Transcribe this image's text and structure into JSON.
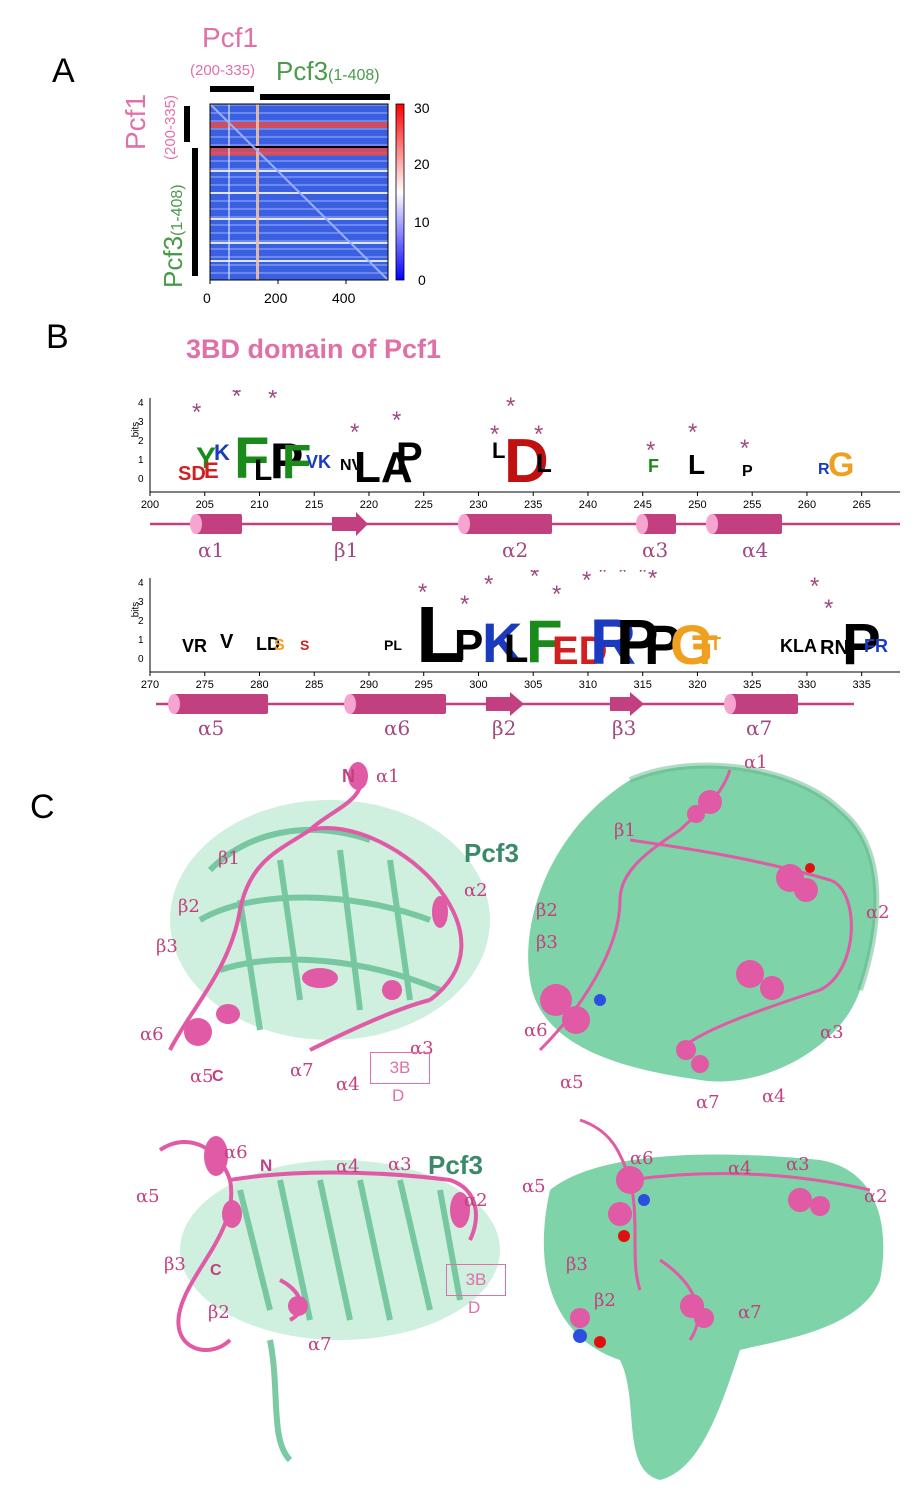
{
  "colors": {
    "pink": "#e070a8",
    "magenta": "#c2407f",
    "green": "#4a9a4a",
    "protein_green": "#7ed3a8",
    "helix_pink": "#e05aa5",
    "star": "#a04a80"
  },
  "panelA": {
    "letter": "A",
    "top_label_pcf1": "Pcf1",
    "top_label_pcf1_range": "(200-335)",
    "top_label_pcf3": "Pcf3",
    "top_label_pcf3_range": "(1-408)",
    "left_label_pcf1": "Pcf1",
    "left_label_pcf1_range": "(200-335)",
    "left_label_pcf3": "Pcf3",
    "left_label_pcf3_range": "(1-408)",
    "x_ticks": [
      "0",
      "200",
      "400"
    ],
    "colorbar_ticks": [
      "30",
      "20",
      "10",
      "0"
    ]
  },
  "chart_data": {
    "type": "heatmap",
    "x_ticks": [
      0,
      200,
      400
    ],
    "colorbar_range": [
      0,
      30
    ],
    "colorbar_ticks": [
      0,
      10,
      20,
      30
    ],
    "colormap": "blue-white-red"
  },
  "panelB": {
    "letter": "B",
    "title": "3BD domain of Pcf1",
    "y_label": "bits",
    "y_ticks": [
      "4",
      "3",
      "2",
      "1",
      "0"
    ],
    "row1_x_ticks": [
      "200",
      "205",
      "210",
      "215",
      "220",
      "225",
      "230",
      "235",
      "240",
      "245",
      "250",
      "255",
      "260",
      "265"
    ],
    "row2_x_ticks": [
      "270",
      "275",
      "280",
      "285",
      "290",
      "295",
      "300",
      "305",
      "310",
      "315",
      "320",
      "325",
      "330",
      "335"
    ],
    "row1_elements": [
      "α1",
      "β1",
      "α2",
      "α3",
      "α4"
    ],
    "row2_elements": [
      "α5",
      "α6",
      "β2",
      "β3",
      "α7"
    ]
  },
  "panelC": {
    "letter": "C",
    "top_left_labels": {
      "n": "N",
      "a1": "α1",
      "b1": "β1",
      "pcf3": "Pcf3",
      "a2": "α2",
      "b2": "β2",
      "b3": "β3",
      "a6": "α6",
      "a3": "α3",
      "a5": "α5",
      "c": "C",
      "a7": "α7",
      "a4": "α4",
      "box": "3B",
      "box2": "D"
    },
    "top_right_labels": {
      "a1": "α1",
      "b1": "β1",
      "a2": "α2",
      "b2": "β2",
      "b3": "β3",
      "a6": "α6",
      "a3": "α3",
      "a5": "α5",
      "a7": "α7",
      "a4": "α4"
    },
    "bottom_left_labels": {
      "a6": "α6",
      "a5": "α5",
      "n": "N",
      "a4": "α4",
      "a3": "α3",
      "pcf3": "Pcf3",
      "a2": "α2",
      "b3": "β3",
      "c": "C",
      "box": "3B",
      "box2": "D",
      "b2": "β2",
      "a7": "α7"
    },
    "bottom_right_labels": {
      "a6": "α6",
      "a5": "α5",
      "a4": "α4",
      "a3": "α3",
      "a2": "α2",
      "b3": "β3",
      "b2": "β2",
      "a7": "α7"
    }
  }
}
